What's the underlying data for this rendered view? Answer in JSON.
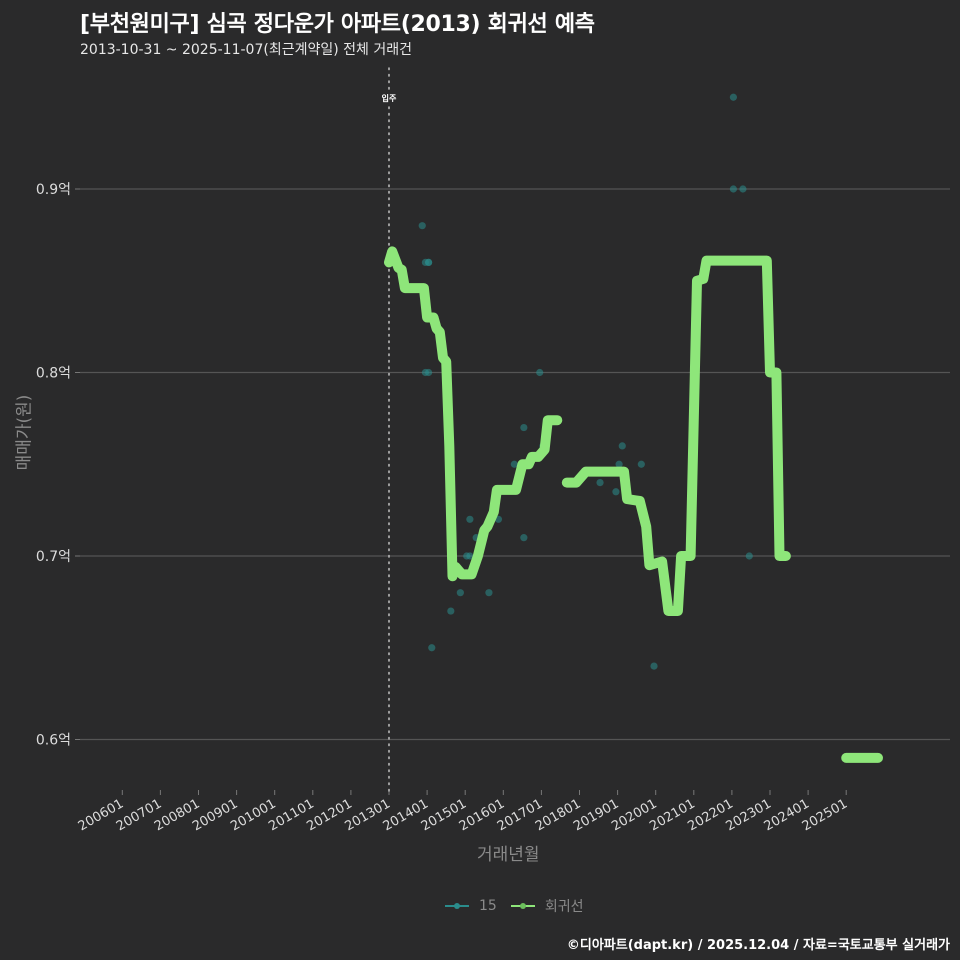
{
  "header": {
    "title": "[부천원미구] 심곡 정다운가 아파트(2013) 회귀선 예측",
    "subtitle": "2013-10-31 ~ 2025-11-07(최근계약일) 전체 거래건"
  },
  "axes": {
    "ylabel": "매매가(원)",
    "xlabel": "거래년월"
  },
  "annotation": {
    "label": "입주",
    "x_category": "201301"
  },
  "legend": {
    "items": [
      {
        "label": "15",
        "color": "#2a8c8c"
      },
      {
        "label": "회귀선",
        "color": "#8ee67a"
      }
    ]
  },
  "footer": {
    "credit": "©디아파트(dapt.kr) / 2025.12.04 / 자료=국토교통부 실거래가"
  },
  "colors": {
    "background": "#2a2a2b",
    "grid": "#555555",
    "regression": "#8ee67a",
    "points": "#2a8c8c"
  },
  "chart_data": {
    "type": "scatter",
    "title": "[부천원미구] 심곡 정다운가 아파트(2013) 회귀선 예측",
    "subtitle": "2013-10-31 ~ 2025-11-07(최근계약일) 전체 거래건",
    "xlabel": "거래년월",
    "ylabel": "매매가(원)",
    "x_ticks": [
      "200601",
      "200701",
      "200801",
      "200901",
      "201001",
      "201101",
      "201201",
      "201301",
      "201401",
      "201501",
      "201601",
      "201701",
      "201801",
      "201901",
      "202001",
      "202101",
      "202201",
      "202301",
      "202401",
      "202501"
    ],
    "y_ticks": [
      "0.6억",
      "0.7억",
      "0.8억",
      "0.9억"
    ],
    "y_tick_values": [
      0.6,
      0.7,
      0.8,
      0.9
    ],
    "ylim": [
      0.575,
      0.97
    ],
    "xlim": [
      "2005-06",
      "2026-06"
    ],
    "grid": true,
    "legend_position": "bottom",
    "vline": {
      "x": "2013-01",
      "label": "입주",
      "style": "dotted"
    },
    "series": [
      {
        "name": "15",
        "kind": "points",
        "points": [
          {
            "x": "2013-11",
            "y": 0.88
          },
          {
            "x": "2013-12",
            "y": 0.86
          },
          {
            "x": "2014-01",
            "y": 0.86
          },
          {
            "x": "2014-01",
            "y": 0.86
          },
          {
            "x": "2013-12",
            "y": 0.8
          },
          {
            "x": "2014-01",
            "y": 0.8
          },
          {
            "x": "2014-02",
            "y": 0.65
          },
          {
            "x": "2014-08",
            "y": 0.67
          },
          {
            "x": "2014-11",
            "y": 0.68
          },
          {
            "x": "2015-01",
            "y": 0.7
          },
          {
            "x": "2015-02",
            "y": 0.7
          },
          {
            "x": "2015-02",
            "y": 0.72
          },
          {
            "x": "2015-04",
            "y": 0.71
          },
          {
            "x": "2015-08",
            "y": 0.68
          },
          {
            "x": "2015-11",
            "y": 0.72
          },
          {
            "x": "2016-04",
            "y": 0.75
          },
          {
            "x": "2016-07",
            "y": 0.71
          },
          {
            "x": "2016-07",
            "y": 0.77
          },
          {
            "x": "2016-12",
            "y": 0.8
          },
          {
            "x": "2017-01",
            "y": 0.76
          },
          {
            "x": "2018-07",
            "y": 0.74
          },
          {
            "x": "2018-12",
            "y": 0.735
          },
          {
            "x": "2019-01",
            "y": 0.75
          },
          {
            "x": "2019-02",
            "y": 0.76
          },
          {
            "x": "2019-08",
            "y": 0.75
          },
          {
            "x": "2019-12",
            "y": 0.64
          },
          {
            "x": "2022-01",
            "y": 0.95
          },
          {
            "x": "2022-01",
            "y": 0.9
          },
          {
            "x": "2022-04",
            "y": 0.9
          },
          {
            "x": "2022-06",
            "y": 0.7
          }
        ]
      },
      {
        "name": "회귀선",
        "kind": "line",
        "segments": [
          [
            {
              "x": "2013-01",
              "y": 0.86
            },
            {
              "x": "2013-02",
              "y": 0.866
            },
            {
              "x": "2013-04",
              "y": 0.857
            },
            {
              "x": "2013-05",
              "y": 0.856
            },
            {
              "x": "2013-06",
              "y": 0.846
            },
            {
              "x": "2013-12",
              "y": 0.846
            },
            {
              "x": "2014-01",
              "y": 0.83
            },
            {
              "x": "2014-03",
              "y": 0.83
            },
            {
              "x": "2014-04",
              "y": 0.824
            },
            {
              "x": "2014-05",
              "y": 0.822
            },
            {
              "x": "2014-06",
              "y": 0.808
            },
            {
              "x": "2014-07",
              "y": 0.806
            },
            {
              "x": "2014-08",
              "y": 0.76
            },
            {
              "x": "2014-09",
              "y": 0.689
            },
            {
              "x": "2014-10",
              "y": 0.694
            },
            {
              "x": "2014-12",
              "y": 0.69
            },
            {
              "x": "2015-03",
              "y": 0.69
            },
            {
              "x": "2015-05",
              "y": 0.7
            },
            {
              "x": "2015-07",
              "y": 0.714
            },
            {
              "x": "2015-08",
              "y": 0.716
            },
            {
              "x": "2015-10",
              "y": 0.724
            },
            {
              "x": "2015-11",
              "y": 0.736
            },
            {
              "x": "2016-05",
              "y": 0.736
            },
            {
              "x": "2016-07",
              "y": 0.75
            },
            {
              "x": "2016-09",
              "y": 0.75
            },
            {
              "x": "2016-10",
              "y": 0.754
            },
            {
              "x": "2016-12",
              "y": 0.754
            },
            {
              "x": "2017-02",
              "y": 0.758
            },
            {
              "x": "2017-03",
              "y": 0.774
            },
            {
              "x": "2017-06",
              "y": 0.774
            }
          ],
          [
            {
              "x": "2017-09",
              "y": 0.74
            },
            {
              "x": "2017-12",
              "y": 0.74
            },
            {
              "x": "2018-03",
              "y": 0.746
            },
            {
              "x": "2019-03",
              "y": 0.746
            },
            {
              "x": "2019-04",
              "y": 0.731
            },
            {
              "x": "2019-08",
              "y": 0.73
            },
            {
              "x": "2019-10",
              "y": 0.716
            },
            {
              "x": "2019-11",
              "y": 0.695
            },
            {
              "x": "2020-03",
              "y": 0.697
            },
            {
              "x": "2020-05",
              "y": 0.67
            },
            {
              "x": "2020-08",
              "y": 0.67
            },
            {
              "x": "2020-09",
              "y": 0.7
            },
            {
              "x": "2020-12",
              "y": 0.7
            },
            {
              "x": "2021-02",
              "y": 0.85
            },
            {
              "x": "2021-04",
              "y": 0.851
            },
            {
              "x": "2021-05",
              "y": 0.861
            },
            {
              "x": "2022-12",
              "y": 0.861
            },
            {
              "x": "2023-01",
              "y": 0.8
            },
            {
              "x": "2023-03",
              "y": 0.8
            },
            {
              "x": "2023-04",
              "y": 0.7
            },
            {
              "x": "2023-06",
              "y": 0.7
            }
          ],
          [
            {
              "x": "2025-01",
              "y": 0.59
            },
            {
              "x": "2025-11",
              "y": 0.59
            }
          ]
        ]
      }
    ]
  }
}
